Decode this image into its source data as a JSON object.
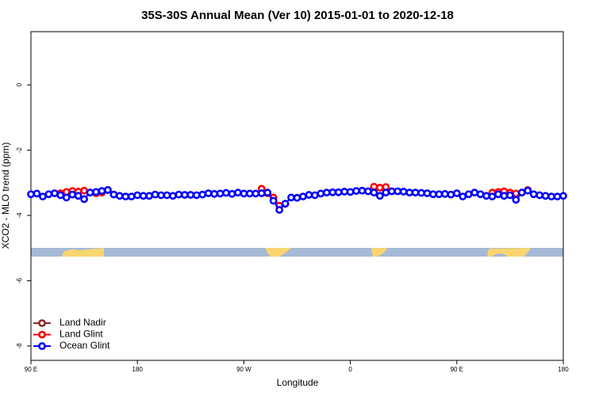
{
  "chart_data": {
    "type": "line",
    "title": "35S-30S Annual Mean (Ver 10)   2015-01-01 to 2020-12-18",
    "x_label": "Longitude",
    "y_label": "XCO2 - MLO trend (ppm)",
    "xlim": [
      90,
      540
    ],
    "ylim": [
      -8.44,
      1.63
    ],
    "xticks": [
      {
        "value": 90,
        "label": "90 E"
      },
      180,
      {
        "value": 270,
        "label": "90 W"
      },
      {
        "value": 360,
        "label": "0"
      },
      {
        "value": 450,
        "label": "90 E"
      },
      {
        "value": 540,
        "label": "180"
      }
    ],
    "yticks": [
      0,
      -2,
      -4,
      -6,
      -8
    ],
    "legend": "bottom-left",
    "series": [
      {
        "name": "Land Nadir",
        "color": "#8b2a2a",
        "x": [],
        "values": []
      },
      {
        "name": "Land Glint",
        "color": "#ff0000",
        "x": [
          115,
          120,
          125,
          130,
          135,
          140,
          145,
          150,
          155,
          220,
          285,
          290,
          295,
          300,
          305,
          340,
          380,
          385,
          390,
          440,
          480,
          485,
          490,
          495,
          500,
          505,
          510
        ],
        "values": [
          -3.32,
          -3.28,
          -3.25,
          -3.27,
          -3.24,
          -3.3,
          -3.32,
          -3.3,
          -3.22,
          null,
          -3.18,
          -3.32,
          -3.45,
          -3.7,
          -3.65,
          null,
          -3.12,
          -3.15,
          -3.13,
          null,
          -3.3,
          -3.28,
          -3.26,
          -3.3,
          -3.33,
          -3.3,
          -3.22
        ]
      },
      {
        "name": "Ocean Glint",
        "color": "#0000ff",
        "x": [
          90,
          95,
          100,
          105,
          110,
          115,
          120,
          125,
          130,
          135,
          140,
          145,
          150,
          155,
          160,
          165,
          170,
          175,
          180,
          185,
          190,
          195,
          200,
          205,
          210,
          215,
          220,
          225,
          230,
          235,
          240,
          245,
          250,
          255,
          260,
          265,
          270,
          275,
          280,
          285,
          290,
          295,
          300,
          305,
          310,
          315,
          320,
          325,
          330,
          335,
          340,
          345,
          350,
          355,
          360,
          365,
          370,
          375,
          380,
          385,
          390,
          395,
          400,
          405,
          410,
          415,
          420,
          425,
          430,
          435,
          440,
          445,
          450,
          455,
          460,
          465,
          470,
          475,
          480,
          485,
          490,
          495,
          500,
          505,
          510,
          515,
          520,
          525,
          530,
          535,
          540
        ],
        "values": [
          -3.35,
          -3.33,
          -3.42,
          -3.35,
          -3.32,
          -3.38,
          -3.45,
          -3.36,
          -3.4,
          -3.5,
          -3.3,
          -3.28,
          -3.25,
          -3.22,
          -3.36,
          -3.4,
          -3.42,
          -3.42,
          -3.38,
          -3.4,
          -3.4,
          -3.36,
          -3.38,
          -3.38,
          -3.4,
          -3.36,
          -3.37,
          -3.37,
          -3.38,
          -3.36,
          -3.32,
          -3.34,
          -3.33,
          -3.31,
          -3.34,
          -3.3,
          -3.33,
          -3.33,
          -3.33,
          -3.32,
          -3.3,
          -3.55,
          -3.83,
          -3.64,
          -3.45,
          -3.46,
          -3.42,
          -3.37,
          -3.38,
          -3.33,
          -3.3,
          -3.29,
          -3.29,
          -3.27,
          -3.28,
          -3.25,
          -3.24,
          -3.26,
          -3.3,
          -3.4,
          -3.3,
          -3.26,
          -3.26,
          -3.27,
          -3.3,
          -3.3,
          -3.31,
          -3.32,
          -3.35,
          -3.35,
          -3.34,
          -3.36,
          -3.32,
          -3.42,
          -3.35,
          -3.3,
          -3.35,
          -3.4,
          -3.42,
          -3.35,
          -3.4,
          -3.38,
          -3.52,
          -3.3,
          -3.24,
          -3.35,
          -3.38,
          -3.4,
          -3.42,
          -3.42,
          -3.4
        ]
      }
    ]
  }
}
